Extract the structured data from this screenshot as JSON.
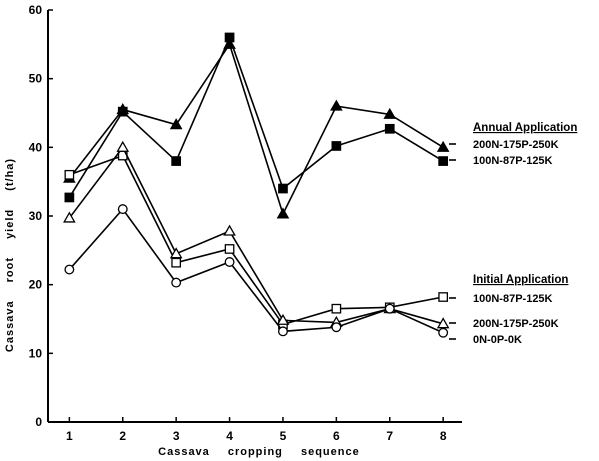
{
  "chart_data": {
    "type": "line",
    "xlabel": "Cassava cropping sequence",
    "ylabel": "Cassava root yield (t/ha)",
    "x": [
      1,
      2,
      3,
      4,
      5,
      6,
      7,
      8
    ],
    "xlim": [
      0.6,
      8.5
    ],
    "ylim": [
      0,
      60
    ],
    "yticks": [
      0,
      10,
      20,
      30,
      40,
      50,
      60
    ],
    "grid": false,
    "legend_groups": [
      {
        "title": "Annual Application",
        "series": [
          "annual-200N",
          "annual-100N"
        ]
      },
      {
        "title": "Initial Application",
        "series": [
          "initial-100N",
          "initial-200N",
          "initial-0N"
        ]
      }
    ],
    "series": [
      {
        "id": "annual-200N",
        "name": "200N-175P-250K",
        "marker": "filled-triangle",
        "values": [
          35.5,
          45.5,
          43.3,
          55.0,
          30.3,
          46.0,
          44.8,
          40.0
        ]
      },
      {
        "id": "annual-100N",
        "name": "100N-87P-125K",
        "marker": "filled-square",
        "values": [
          32.7,
          45.2,
          38.0,
          56.0,
          34.0,
          40.2,
          42.7,
          38.0
        ]
      },
      {
        "id": "initial-100N",
        "name": "100N-87P-125K",
        "marker": "open-square",
        "values": [
          36.0,
          38.8,
          23.2,
          25.2,
          14.2,
          16.5,
          16.7,
          18.2
        ]
      },
      {
        "id": "initial-200N",
        "name": "200N-175P-250K",
        "marker": "open-triangle",
        "values": [
          29.7,
          40.0,
          24.5,
          27.8,
          14.8,
          14.5,
          16.5,
          14.3
        ]
      },
      {
        "id": "initial-0N",
        "name": "0N-0P-0K",
        "marker": "open-circle",
        "values": [
          22.2,
          31.0,
          20.3,
          23.3,
          13.2,
          13.8,
          16.5,
          13.0
        ]
      }
    ]
  }
}
